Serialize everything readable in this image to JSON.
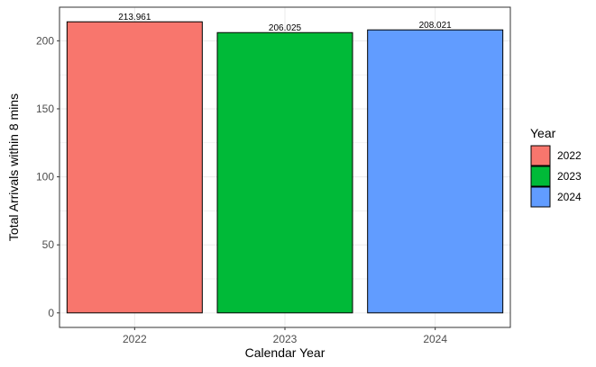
{
  "chart_data": {
    "type": "bar",
    "categories": [
      "2022",
      "2023",
      "2024"
    ],
    "values": [
      213.961,
      206.025,
      208.021
    ],
    "value_labels": [
      "213.961",
      "206.025",
      "208.021"
    ],
    "colors": [
      "#F8766D",
      "#00BA38",
      "#619CFF"
    ],
    "xlabel": "Calendar Year",
    "ylabel": "Total Arrivals within 8 mins",
    "yticks": [
      0,
      50,
      100,
      150,
      200
    ],
    "ylim": [
      -10.7,
      224.7
    ],
    "grid": true,
    "legend": {
      "title": "Year",
      "placement": "right",
      "entries": [
        {
          "label": "2022",
          "color": "#F8766D"
        },
        {
          "label": "2023",
          "color": "#00BA38"
        },
        {
          "label": "2024",
          "color": "#619CFF"
        }
      ]
    }
  }
}
